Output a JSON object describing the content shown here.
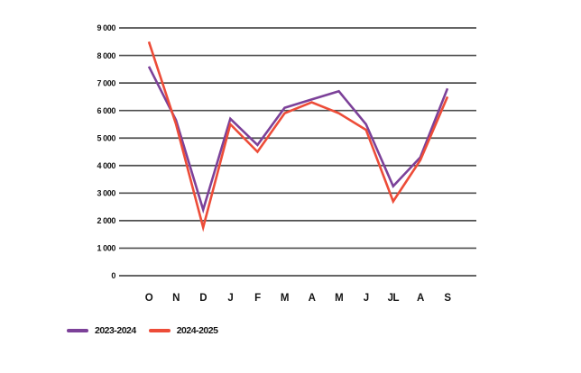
{
  "chart_data": {
    "type": "line",
    "categories": [
      "O",
      "N",
      "D",
      "J",
      "F",
      "M",
      "A",
      "M",
      "J",
      "JL",
      "A",
      "S"
    ],
    "series": [
      {
        "name": "2023-2024",
        "color": "#7C4199",
        "values": [
          7600,
          5650,
          2400,
          5700,
          4750,
          6100,
          6400,
          6700,
          5500,
          3250,
          4300,
          6800
        ]
      },
      {
        "name": "2024-2025",
        "color": "#ED4C38",
        "values": [
          8500,
          5500,
          1750,
          5500,
          4500,
          5900,
          6300,
          5900,
          5300,
          2700,
          4200,
          6500
        ]
      }
    ],
    "title": "",
    "xlabel": "",
    "ylabel": "",
    "ylim": [
      0,
      9000
    ],
    "ytick_step": 1000,
    "ytick_labels": [
      "0",
      "1 000",
      "2 000",
      "3 000",
      "4 000",
      "5 000",
      "6 000",
      "7 000",
      "8 000",
      "9 000"
    ],
    "grid": "horizontal",
    "gridline_color": "#4f4f4f",
    "legend_position": "bottom-left"
  },
  "legend": {
    "items": [
      {
        "label": "2023-2024",
        "color": "#7C4199"
      },
      {
        "label": "2024-2025",
        "color": "#ED4C38"
      }
    ]
  },
  "colors": {
    "background": "#ffffff",
    "text": "#141414"
  }
}
